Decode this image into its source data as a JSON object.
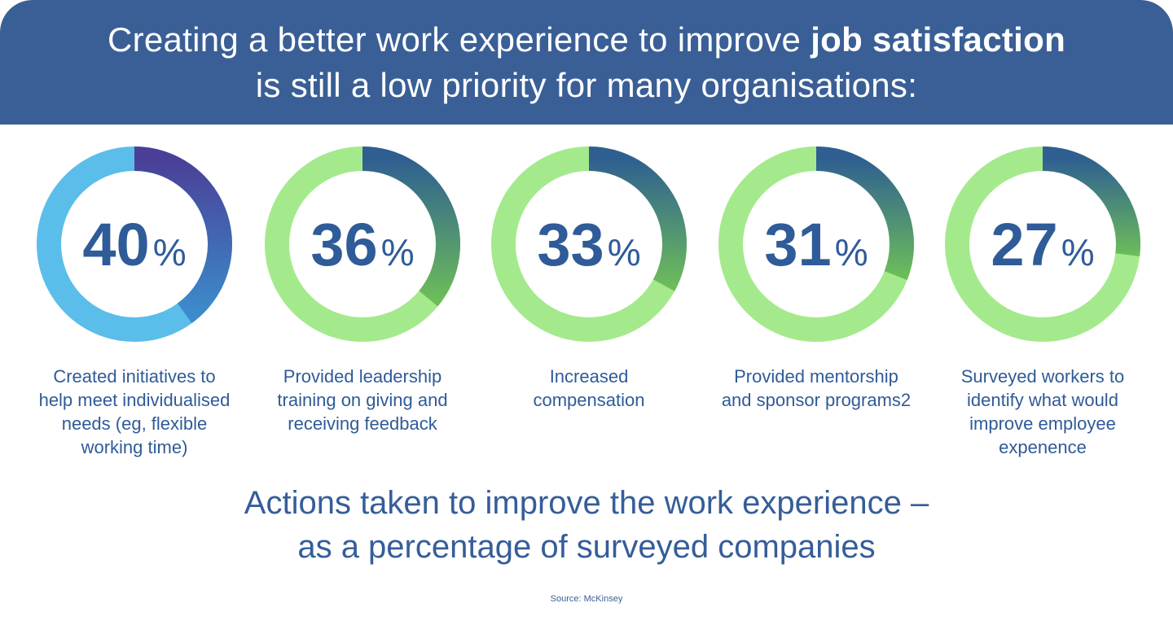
{
  "header": {
    "line1_prefix": "Creating a better work experience to improve ",
    "line1_bold": "job satisfaction",
    "line2": "is still a low priority for many organisations:"
  },
  "chart_data": {
    "type": "donut",
    "unit": "%",
    "categories": [
      "Created initiatives to help meet individualised needs (eg, flexible working time)",
      "Provided leadership training on giving and receiving feedback",
      "Increased compensation",
      "Provided mentorship and sponsor programs2",
      "Surveyed workers to identify what would improve employee expenence"
    ],
    "values": [
      40,
      36,
      33,
      31,
      27
    ],
    "title": "Actions taken to improve the work experience – as a percentage of surveyed companies"
  },
  "items": [
    {
      "value": "40",
      "symbol": "%",
      "label_lines": [
        "Created initiatives to",
        "help meet individualised",
        "needs (eg, flexible",
        "working time)"
      ],
      "colors": {
        "track": "#5bbde9",
        "arc_start": "#4a3f97",
        "arc_end": "#3c8ccc"
      }
    },
    {
      "value": "36",
      "symbol": "%",
      "label_lines": [
        "Provided leadership",
        "training on giving and",
        "receiving feedback"
      ],
      "colors": {
        "track": "#a4ea8c",
        "arc_start": "#2f5f91",
        "arc_end": "#6cbc5a"
      }
    },
    {
      "value": "33",
      "symbol": "%",
      "label_lines": [
        "Increased",
        "compensation"
      ],
      "colors": {
        "track": "#a4ea8c",
        "arc_start": "#2f5f91",
        "arc_end": "#6cbc5a"
      }
    },
    {
      "value": "31",
      "symbol": "%",
      "label_lines": [
        "Provided mentorship",
        "and sponsor programs2"
      ],
      "colors": {
        "track": "#a4ea8c",
        "arc_start": "#2f5f91",
        "arc_end": "#6cbc5a"
      }
    },
    {
      "value": "27",
      "symbol": "%",
      "label_lines": [
        "Surveyed workers to",
        "identify what would",
        "improve employee",
        "expenence"
      ],
      "colors": {
        "track": "#a4ea8c",
        "arc_start": "#2f5f91",
        "arc_end": "#6cbc5a"
      }
    }
  ],
  "footer": {
    "line1": "Actions taken to improve the work experience –",
    "line2": "as a percentage of surveyed companies",
    "source": "Source: McKinsey"
  }
}
